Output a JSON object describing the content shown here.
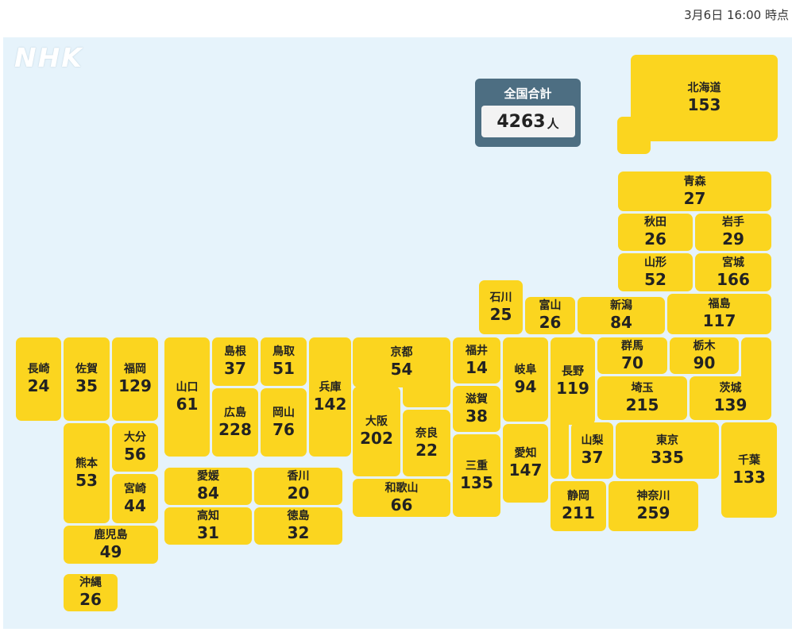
{
  "header": {
    "timestamp": "3月6日 16:00 時点"
  },
  "logo": {
    "text": "NHK"
  },
  "total": {
    "label": "全国合計",
    "value": "4263",
    "unit": "人"
  },
  "prefectures": {
    "hokkaido": {
      "name": "北海道",
      "count": "153"
    },
    "aomori": {
      "name": "青森",
      "count": "27"
    },
    "akita": {
      "name": "秋田",
      "count": "26"
    },
    "iwate": {
      "name": "岩手",
      "count": "29"
    },
    "yamagata": {
      "name": "山形",
      "count": "52"
    },
    "miyagi": {
      "name": "宮城",
      "count": "166"
    },
    "ishikawa": {
      "name": "石川",
      "count": "25"
    },
    "toyama": {
      "name": "富山",
      "count": "26"
    },
    "niigata": {
      "name": "新潟",
      "count": "84"
    },
    "fukushima": {
      "name": "福島",
      "count": "117"
    },
    "nagasaki": {
      "name": "長崎",
      "count": "24"
    },
    "saga": {
      "name": "佐賀",
      "count": "35"
    },
    "fukuoka": {
      "name": "福岡",
      "count": "129"
    },
    "yamaguchi": {
      "name": "山口",
      "count": "61"
    },
    "shimane": {
      "name": "島根",
      "count": "37"
    },
    "tottori": {
      "name": "鳥取",
      "count": "51"
    },
    "hyogo": {
      "name": "兵庫",
      "count": "142"
    },
    "kyoto": {
      "name": "京都",
      "count": "54"
    },
    "fukui": {
      "name": "福井",
      "count": "14"
    },
    "gifu": {
      "name": "岐阜",
      "count": "94"
    },
    "nagano": {
      "name": "長野",
      "count": "119"
    },
    "gunma": {
      "name": "群馬",
      "count": "70"
    },
    "tochigi": {
      "name": "栃木",
      "count": "90"
    },
    "hiroshima": {
      "name": "広島",
      "count": "228"
    },
    "okayama": {
      "name": "岡山",
      "count": "76"
    },
    "osaka": {
      "name": "大阪",
      "count": "202"
    },
    "shiga": {
      "name": "滋賀",
      "count": "38"
    },
    "saitama": {
      "name": "埼玉",
      "count": "215"
    },
    "ibaraki": {
      "name": "茨城",
      "count": "139"
    },
    "oita": {
      "name": "大分",
      "count": "56"
    },
    "kumamoto": {
      "name": "熊本",
      "count": "53"
    },
    "nara": {
      "name": "奈良",
      "count": "22"
    },
    "aichi": {
      "name": "愛知",
      "count": "147"
    },
    "mie": {
      "name": "三重",
      "count": "135"
    },
    "yamanashi": {
      "name": "山梨",
      "count": "37"
    },
    "tokyo": {
      "name": "東京",
      "count": "335"
    },
    "chiba": {
      "name": "千葉",
      "count": "133"
    },
    "miyazaki": {
      "name": "宮崎",
      "count": "44"
    },
    "ehime": {
      "name": "愛媛",
      "count": "84"
    },
    "kagawa": {
      "name": "香川",
      "count": "20"
    },
    "kochi": {
      "name": "高知",
      "count": "31"
    },
    "tokushima": {
      "name": "徳島",
      "count": "32"
    },
    "wakayama": {
      "name": "和歌山",
      "count": "66"
    },
    "shizuoka": {
      "name": "静岡",
      "count": "211"
    },
    "kanagawa": {
      "name": "神奈川",
      "count": "259"
    },
    "kagoshima": {
      "name": "鹿児島",
      "count": "49"
    },
    "okinawa": {
      "name": "沖縄",
      "count": "26"
    }
  },
  "colors": {
    "tile": "#fbd51f",
    "sea": "#e6f3fb",
    "total_panel": "#4d6e82"
  }
}
